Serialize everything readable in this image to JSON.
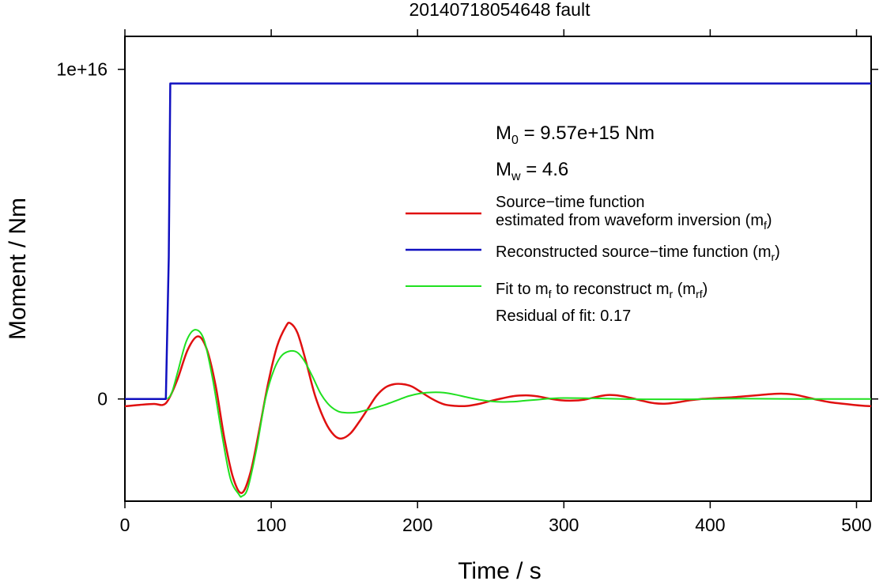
{
  "chart_data": {
    "type": "line",
    "title": "20140718054648 fault",
    "xlabel": "Time / s",
    "ylabel": "Moment / Nm",
    "xlim": [
      0,
      510
    ],
    "ylim": [
      -3100000000000000.0,
      1.1e+16
    ],
    "x_ticks": [
      0,
      100,
      200,
      300,
      400,
      500
    ],
    "x_tick_labels": [
      "0",
      "100",
      "200",
      "300",
      "400",
      "500"
    ],
    "y_ticks": [
      0,
      1e+16
    ],
    "y_tick_labels": [
      "0",
      "1e+16"
    ],
    "grid": false,
    "legend_position": "right",
    "annotations": {
      "m0": {
        "base": "M",
        "sub": "0",
        "rest": " = 9.57e+15 Nm"
      },
      "mw": {
        "base": "M",
        "sub": "w",
        "rest": " = 4.6"
      },
      "residual": "Residual of fit: 0.17"
    },
    "legend": [
      {
        "color": "#e01010",
        "parts": [
          {
            "text": "Source−time function",
            "line": 1
          },
          {
            "text": "estimated from waveform inversion (m",
            "line": 2
          },
          {
            "sub": "f",
            "line": 2
          },
          {
            "text": ")",
            "line": 2
          }
        ]
      },
      {
        "color": "#1010c0",
        "parts": [
          {
            "text": "Reconstructed source−time function (m",
            "line": 1
          },
          {
            "sub": "r",
            "line": 1
          },
          {
            "text": ")",
            "line": 1
          }
        ]
      },
      {
        "color": "#20e020",
        "parts": [
          {
            "text": "Fit to m",
            "line": 1
          },
          {
            "sub": "f",
            "line": 1
          },
          {
            "text": " to reconstruct m",
            "line": 1
          },
          {
            "sub": "r",
            "line": 1
          },
          {
            "text": " (m",
            "line": 1
          },
          {
            "sub": "rf",
            "line": 1
          },
          {
            "text": ")",
            "line": 1
          }
        ]
      }
    ],
    "series": [
      {
        "color": "#1010c0",
        "x": [
          0,
          28,
          30,
          31,
          510
        ],
        "y": [
          0,
          0,
          4300000000000000.0,
          9570000000000000.0,
          9570000000000000.0
        ]
      },
      {
        "color": "#e01010",
        "x": [
          0,
          10,
          20,
          26,
          30,
          36,
          43,
          50,
          56,
          62,
          68,
          74,
          80,
          86,
          92,
          98,
          104,
          110,
          113,
          118,
          124,
          130,
          137,
          143,
          148,
          154,
          160,
          166,
          172,
          178,
          184,
          190,
          196,
          202,
          210,
          218,
          226,
          234,
          242,
          250,
          258,
          266,
          274,
          282,
          290,
          298,
          306,
          314,
          322,
          330,
          338,
          346,
          354,
          362,
          370,
          378,
          386,
          394,
          402,
          410,
          418,
          426,
          434,
          442,
          450,
          458,
          466,
          474,
          482,
          490,
          498,
          506,
          510
        ],
        "y": [
          -220000000000000.0,
          -180000000000000.0,
          -150000000000000.0,
          -180000000000000.0,
          0,
          600000000000000.0,
          1500000000000000.0,
          1900000000000000.0,
          1500000000000000.0,
          400000000000000.0,
          -1200000000000000.0,
          -2400000000000000.0,
          -2850000000000000.0,
          -2200000000000000.0,
          -900000000000000.0,
          500000000000000.0,
          1600000000000000.0,
          2200000000000000.0,
          2300000000000000.0,
          2000000000000000.0,
          1100000000000000.0,
          100000000000000.0,
          -700000000000000.0,
          -1100000000000000.0,
          -1200000000000000.0,
          -1050000000000000.0,
          -700000000000000.0,
          -300000000000000.0,
          100000000000000.0,
          350000000000000.0,
          450000000000000.0,
          450000000000000.0,
          380000000000000.0,
          220000000000000.0,
          0,
          -160000000000000.0,
          -210000000000000.0,
          -210000000000000.0,
          -150000000000000.0,
          -60000000000000.0,
          20000000000000.0,
          90000000000000.0,
          110000000000000.0,
          80000000000000.0,
          10000000000000.0,
          -40000000000000.0,
          -50000000000000.0,
          -20000000000000.0,
          60000000000000.0,
          120000000000000.0,
          100000000000000.0,
          30000000000000.0,
          -60000000000000.0,
          -130000000000000.0,
          -140000000000000.0,
          -100000000000000.0,
          -40000000000000.0,
          0,
          20000000000000.0,
          40000000000000.0,
          60000000000000.0,
          90000000000000.0,
          120000000000000.0,
          150000000000000.0,
          160000000000000.0,
          130000000000000.0,
          50000000000000.0,
          -30000000000000.0,
          -100000000000000.0,
          -140000000000000.0,
          -180000000000000.0,
          -210000000000000.0,
          -220000000000000.0
        ]
      },
      {
        "color": "#20e020",
        "x": [
          29,
          32,
          36,
          42,
          48,
          54,
          60,
          66,
          72,
          78,
          80,
          84,
          90,
          96,
          102,
          108,
          116,
          122,
          128,
          134,
          140,
          146,
          152,
          158,
          164,
          170,
          178,
          186,
          194,
          202,
          210,
          218,
          226,
          234,
          242,
          250,
          258,
          266,
          274,
          282,
          290,
          300,
          320,
          340,
          360,
          380,
          400,
          420,
          440,
          460,
          480,
          510
        ],
        "y": [
          0,
          180000000000000.0,
          800000000000000.0,
          1750000000000000.0,
          2100000000000000.0,
          1800000000000000.0,
          600000000000000.0,
          -1000000000000000.0,
          -2400000000000000.0,
          -2900000000000000.0,
          -2950000000000000.0,
          -2700000000000000.0,
          -1500000000000000.0,
          0,
          900000000000000.0,
          1350000000000000.0,
          1450000000000000.0,
          1200000000000000.0,
          700000000000000.0,
          150000000000000.0,
          -200000000000000.0,
          -380000000000000.0,
          -420000000000000.0,
          -410000000000000.0,
          -350000000000000.0,
          -280000000000000.0,
          -170000000000000.0,
          -40000000000000.0,
          90000000000000.0,
          170000000000000.0,
          200000000000000.0,
          190000000000000.0,
          130000000000000.0,
          50000000000000.0,
          -20000000000000.0,
          -70000000000000.0,
          -90000000000000.0,
          -80000000000000.0,
          -50000000000000.0,
          -20000000000000.0,
          10000000000000.0,
          30000000000000.0,
          20000000000000.0,
          0,
          -10000000000000.0,
          -10000000000000.0,
          0,
          10000000000000.0,
          5000000000000.0,
          0,
          0,
          0
        ]
      }
    ]
  }
}
